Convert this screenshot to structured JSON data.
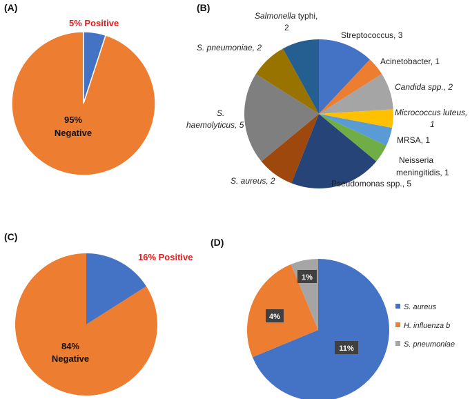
{
  "chart_data": [
    {
      "type": "pie",
      "panel": "(A)",
      "slices": [
        {
          "label": "Positive",
          "value": 5,
          "color": "#4472c4"
        },
        {
          "label": "Negative",
          "value": 95,
          "color": "#ed7d31"
        }
      ],
      "labels": {
        "positive": "5% Positive",
        "negative_pct": "95%",
        "negative_word": "Negative"
      }
    },
    {
      "type": "pie",
      "panel": "(B)",
      "slices": [
        {
          "label": "Streptococcus, 3",
          "value": 3,
          "color": "#4472c4"
        },
        {
          "label": "Acinetobacter, 1",
          "value": 1,
          "color": "#ed7d31"
        },
        {
          "label": "Candida spp., 2",
          "value": 2,
          "color": "#a5a5a5"
        },
        {
          "label": "Micrococcus luteus, 1",
          "value": 1,
          "color": "#ffc000"
        },
        {
          "label": "MRSA, 1",
          "value": 1,
          "color": "#5b9bd5"
        },
        {
          "label": "Neisseria meningitidis, 1",
          "value": 1,
          "color": "#70ad47"
        },
        {
          "label": "Pseudomonas spp., 5",
          "value": 5,
          "color": "#264478"
        },
        {
          "label": "S. aureus, 2",
          "value": 2,
          "color": "#9e480e"
        },
        {
          "label": "S. haemolyticus, 5",
          "value": 5,
          "color": "#7f7f7f"
        },
        {
          "label": "S. pneumoniae, 2",
          "value": 2,
          "color": "#997300"
        },
        {
          "label": "Salmonella typhi, 2",
          "value": 2,
          "color": "#255e91"
        }
      ]
    },
    {
      "type": "pie",
      "panel": "(C)",
      "slices": [
        {
          "label": "Positive",
          "value": 16,
          "color": "#4472c4"
        },
        {
          "label": "Negative",
          "value": 84,
          "color": "#ed7d31"
        }
      ],
      "labels": {
        "positive": "16% Positive",
        "negative_pct": "84%",
        "negative_word": "Negative"
      }
    },
    {
      "type": "pie",
      "panel": "(D)",
      "slices": [
        {
          "label": "S. aureus",
          "value": 11,
          "display": "11%",
          "color": "#4472c4"
        },
        {
          "label": "H. influenza b",
          "value": 4,
          "display": "4%",
          "color": "#ed7d31"
        },
        {
          "label": "S. pneumoniae",
          "value": 1,
          "display": "1%",
          "color": "#a5a5a5"
        }
      ]
    }
  ],
  "text": {
    "b_labels": {
      "strep": "Streptococcus, 3",
      "acin": "Acinetobacter, 1",
      "candida": "Candida spp., 2",
      "micro_1": "Micrococcus luteus,",
      "micro_2": "1",
      "mrsa": "MRSA, 1",
      "neis_1": "Neisseria",
      "neis_2": "meningitidis, 1",
      "pseudo": "Pseudomonas spp., 5",
      "saureus": "S. aureus, 2",
      "shaem_1": "S.",
      "shaem_2": "haemolyticus, 5",
      "spneu": "S. pneumoniae, 2",
      "salm_1a": "Salmonella",
      "salm_1b": " typhi,",
      "salm_2": "2"
    },
    "d_legend": [
      "S. aureus",
      "H. influenza b",
      "S. pneumoniae"
    ]
  }
}
